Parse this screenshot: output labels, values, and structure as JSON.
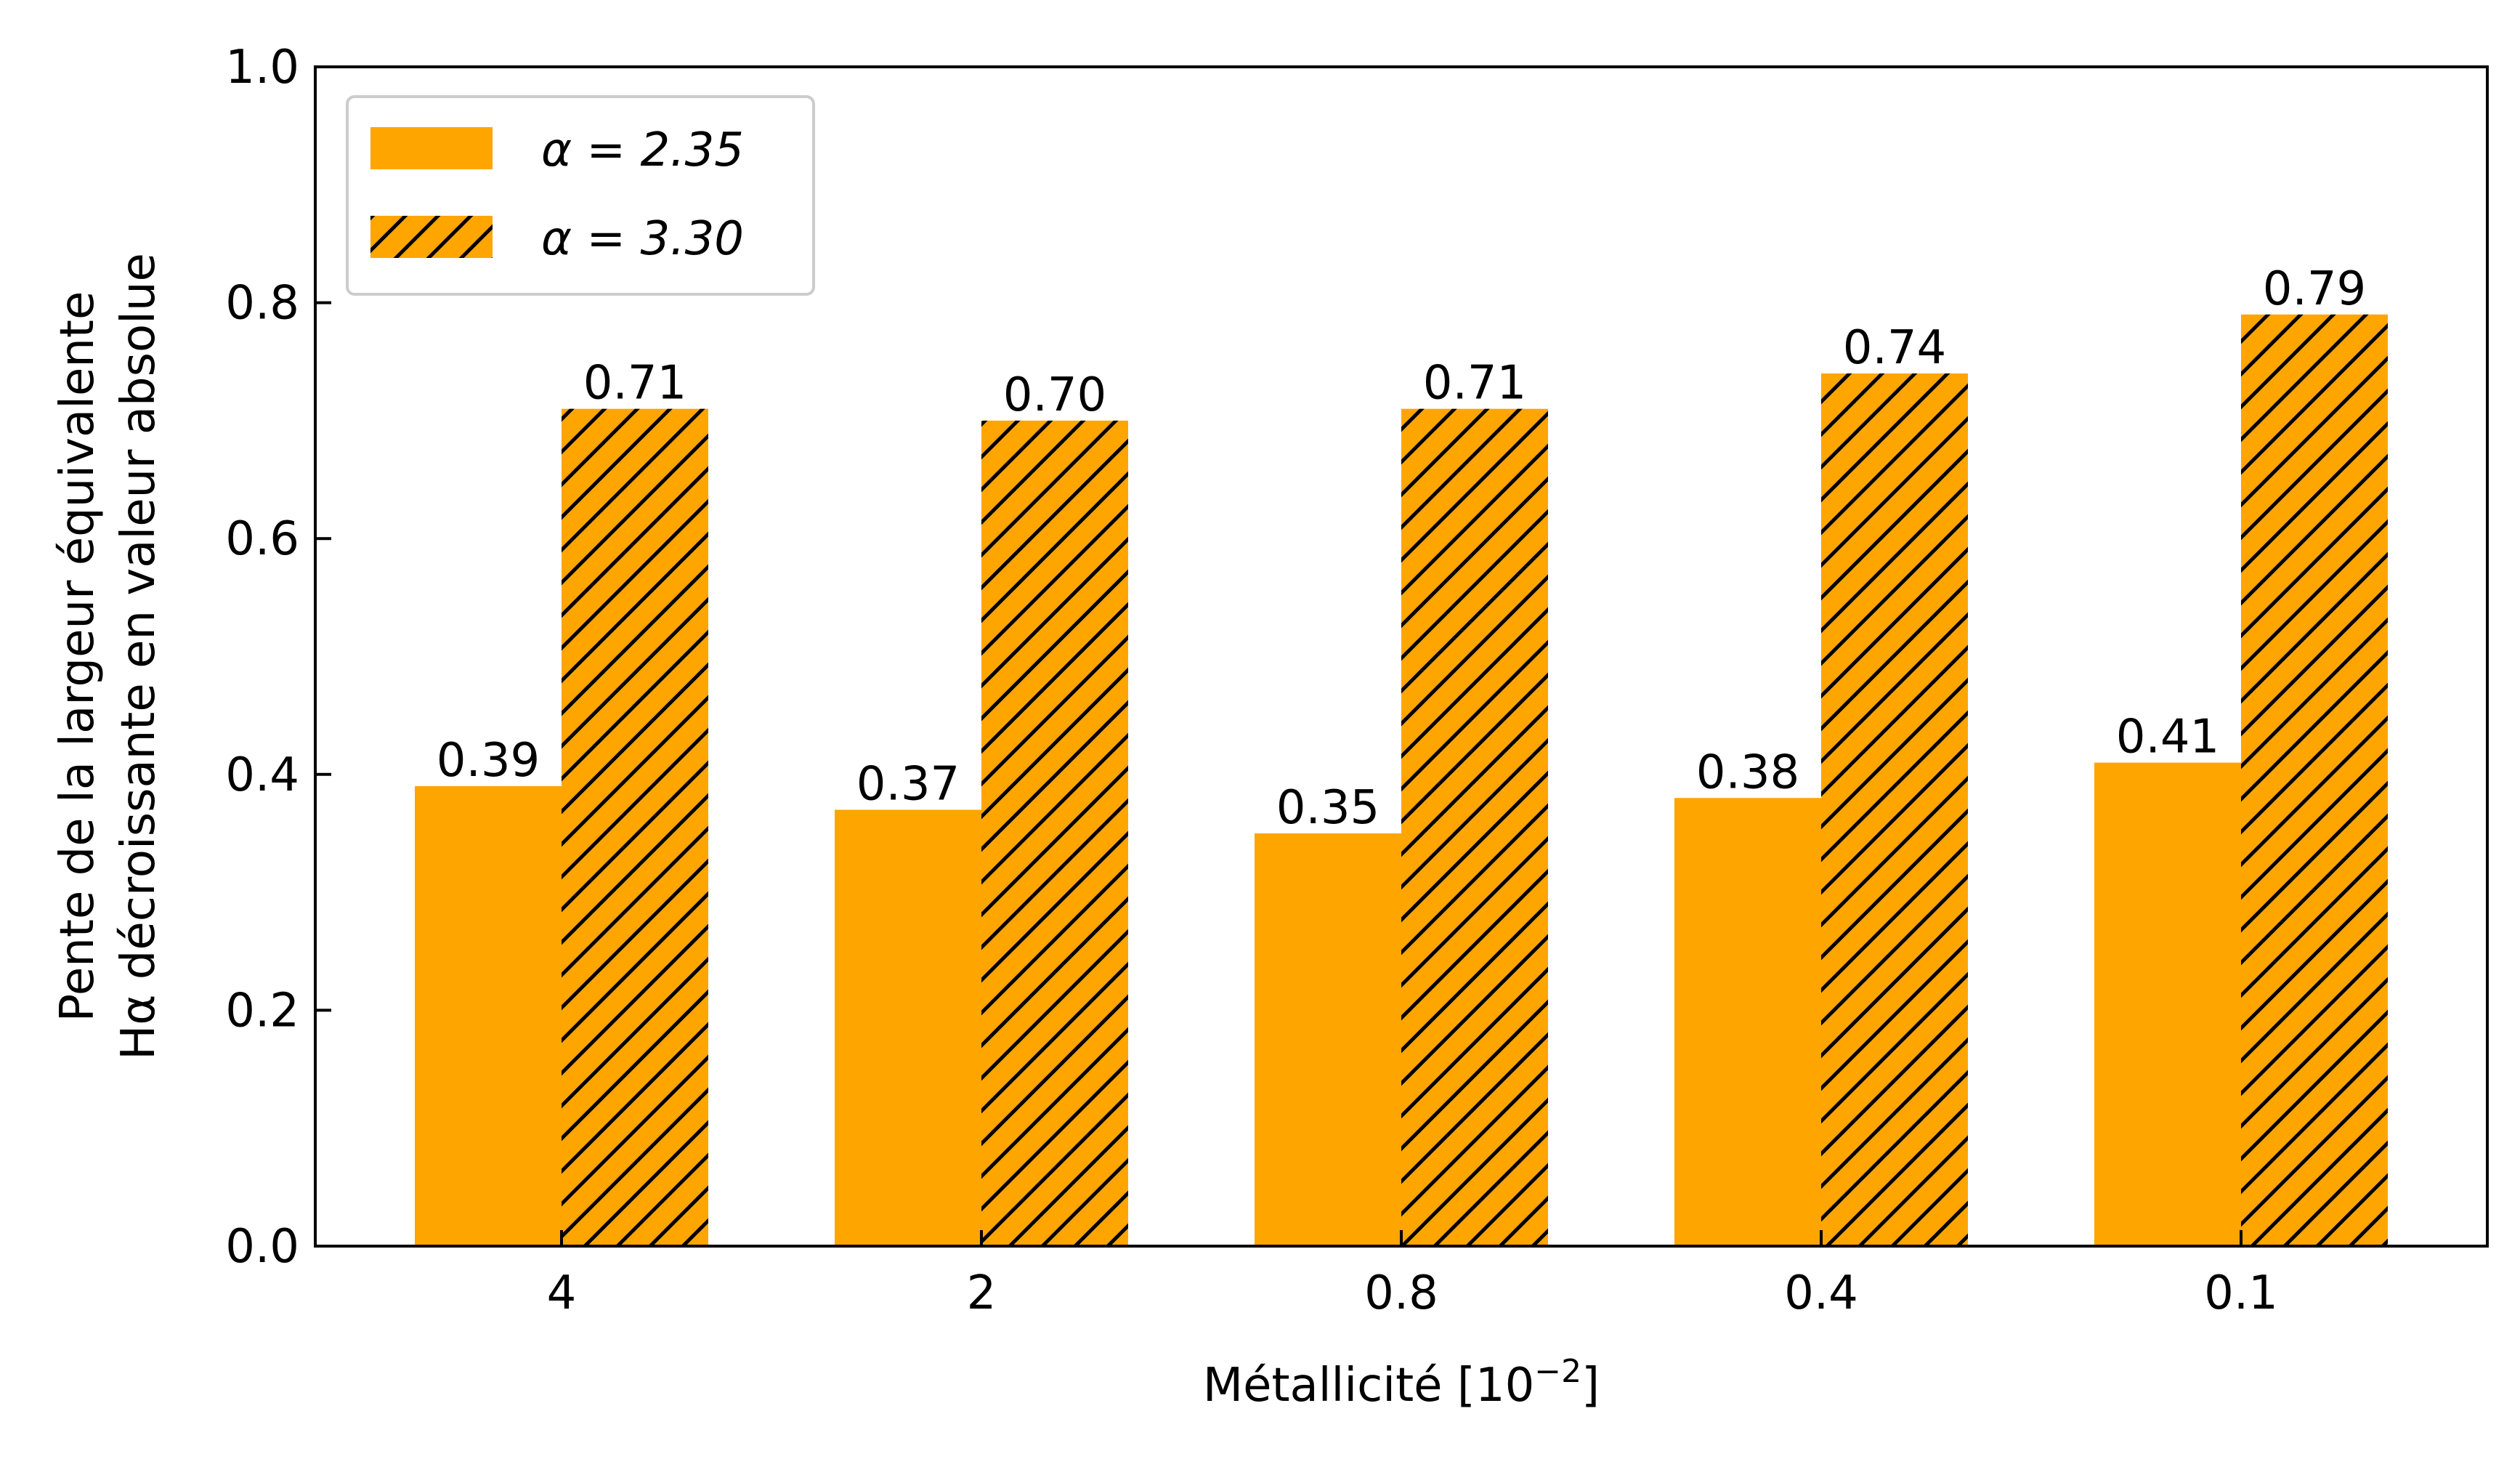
{
  "chart_data": {
    "type": "bar",
    "categories": [
      "4",
      "2",
      "0.8",
      "0.4",
      "0.1"
    ],
    "series": [
      {
        "name": "α = 2.35",
        "values": [
          0.39,
          0.37,
          0.35,
          0.38,
          0.41
        ],
        "hatch": false
      },
      {
        "name": "α = 3.30",
        "values": [
          0.71,
          0.7,
          0.71,
          0.74,
          0.79
        ],
        "hatch": true
      }
    ],
    "data_labels": [
      [
        "0.39",
        "0.37",
        "0.35",
        "0.38",
        "0.41"
      ],
      [
        "0.71",
        "0.70",
        "0.71",
        "0.74",
        "0.79"
      ]
    ],
    "xlabel": {
      "base": "Métallicité [10",
      "sup": "−2",
      "tail": "]"
    },
    "ylabel": [
      "Pente de la largeur équivalente",
      "Hα décroissante en valeur absolue"
    ],
    "ylim": [
      0,
      1.0
    ],
    "yticks": [
      "0.0",
      "0.2",
      "0.4",
      "0.6",
      "0.8",
      "1.0"
    ],
    "bar_color": "#FFA500",
    "legend": {
      "position": "upper left"
    },
    "grid": false
  }
}
